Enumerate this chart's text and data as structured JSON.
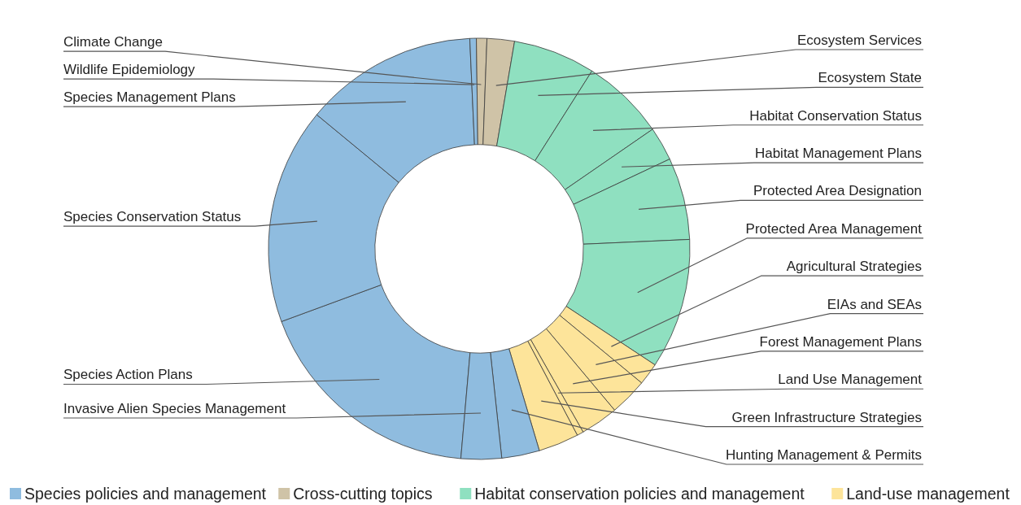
{
  "chart_data": {
    "type": "donut",
    "categories": [
      "Species Action Plans",
      "Species Conservation Status",
      "Species Management Plans",
      "Wildlife Epidemiology",
      "Climate Change",
      "Ecosystem Services",
      "Ecosystem State",
      "Habitat Conservation Status",
      "Habitat Management Plans",
      "Protected Area Designation",
      "Protected Area Management",
      "Agricultural Strategies",
      "EIAs and SEAs",
      "Forest Management Plans",
      "Land Use Management",
      "Green Infrastructure Strategies",
      "Hunting Management & Permits",
      "Invasive Alien Species Management"
    ],
    "values": [
      18.0,
      16.6,
      13.3,
      0.5,
      0.8,
      2.1,
      6.3,
      6.4,
      2.6,
      6.3,
      10.0,
      1.7,
      2.9,
      2.9,
      0.5,
      3.1,
      2.9,
      3.1
    ],
    "colors": [
      "#8fbcdf",
      "#8fbcdf",
      "#8fbcdf",
      "#8fbcdf",
      "#cfc3a7",
      "#cfc3a7",
      "#8fe0c0",
      "#8fe0c0",
      "#8fe0c0",
      "#8fe0c0",
      "#8fe0c0",
      "#fde49a",
      "#fde49a",
      "#fde49a",
      "#fde49a",
      "#fde49a",
      "#8fbcdf",
      "#8fbcdf"
    ],
    "annotations": [
      "Species policies and management",
      "Cross-cutting topics",
      "Habitat conservation policies and management",
      "Land-use management"
    ]
  }
}
